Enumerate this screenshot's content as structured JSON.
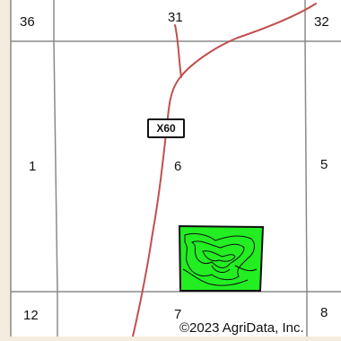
{
  "map": {
    "sections": {
      "s36": "36",
      "s31": "31",
      "s32": "32",
      "s1": "1",
      "s6": "6",
      "s5": "5",
      "s12": "12",
      "s7": "7",
      "s8": "8"
    },
    "road_shield": "X60",
    "copyright": "©2023 AgriData, Inc.",
    "colors": {
      "background": "#f3ecdf",
      "section_lines": "#8a8a8a",
      "road": "#c0504d",
      "field_fill": "#22ee22",
      "field_outline": "#111111"
    }
  }
}
